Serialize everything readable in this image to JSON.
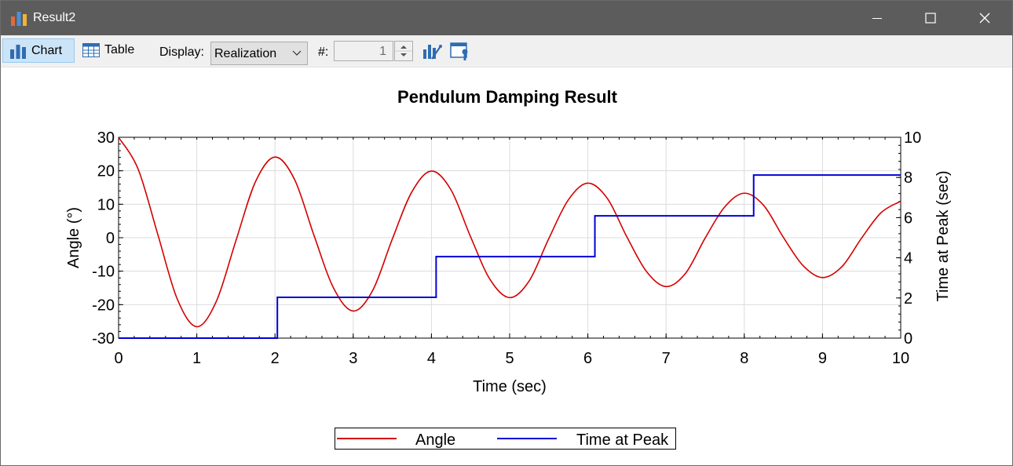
{
  "window": {
    "title": "Result2"
  },
  "toolbar": {
    "chart_label": "Chart",
    "table_label": "Table",
    "display_label": "Display:",
    "display_value": "Realization",
    "number_label": "#:",
    "number_value": "1"
  },
  "colors": {
    "angle": "#d40000",
    "time_at_peak": "#0000d8",
    "titlebar": "#5c5c5c"
  },
  "chart_data": {
    "type": "line",
    "title": "Pendulum Damping Result",
    "xlabel": "Time (sec)",
    "ylabel_left": "Angle (°)",
    "ylabel_right": "Time at Peak (sec)",
    "xlim": [
      0,
      10
    ],
    "ylim_left": [
      -30,
      30
    ],
    "ylim_right": [
      0,
      10
    ],
    "x_ticks": [
      "0",
      "1",
      "2",
      "3",
      "4",
      "5",
      "6",
      "7",
      "8",
      "9",
      "10"
    ],
    "y_left_ticks": [
      "-30",
      "-20",
      "-10",
      "0",
      "10",
      "20",
      "30"
    ],
    "y_right_ticks": [
      "0",
      "2",
      "4",
      "6",
      "8",
      "10"
    ],
    "grid": true,
    "legend_position": "bottom-center",
    "series": [
      {
        "name": "Angle",
        "axis": "left",
        "x": [
          0,
          0.25,
          0.5,
          0.75,
          1.0,
          1.25,
          1.5,
          1.75,
          2.0,
          2.25,
          2.5,
          2.75,
          3.0,
          3.25,
          3.5,
          3.75,
          4.0,
          4.25,
          4.5,
          4.75,
          5.0,
          5.25,
          5.5,
          5.75,
          6.0,
          6.25,
          6.5,
          6.75,
          7.0,
          7.25,
          7.5,
          7.75,
          8.0,
          8.25,
          8.5,
          8.75,
          9.0,
          9.25,
          9.5,
          9.75,
          10.0
        ],
        "y": [
          30,
          20.5,
          1.1,
          -18.3,
          -26.6,
          -19.0,
          -0.9,
          16.7,
          24.1,
          17.4,
          0.6,
          -15.1,
          -21.9,
          -15.7,
          -0.4,
          13.7,
          19.9,
          14.3,
          0.3,
          -12.5,
          -17.9,
          -12.9,
          -0.3,
          11.3,
          16.3,
          11.7,
          0.2,
          -10.1,
          -14.6,
          -10.6,
          -0.1,
          9.2,
          13.3,
          9.6,
          0.1,
          -8.3,
          -11.9,
          -8.6,
          -0.1,
          7.5,
          10.9
        ]
      },
      {
        "name": "Time at Peak",
        "axis": "right",
        "step": true,
        "x": [
          0,
          2.03,
          4.06,
          6.09,
          8.12,
          10
        ],
        "y": [
          0,
          2.03,
          4.06,
          6.09,
          8.12,
          8.12
        ]
      }
    ]
  }
}
